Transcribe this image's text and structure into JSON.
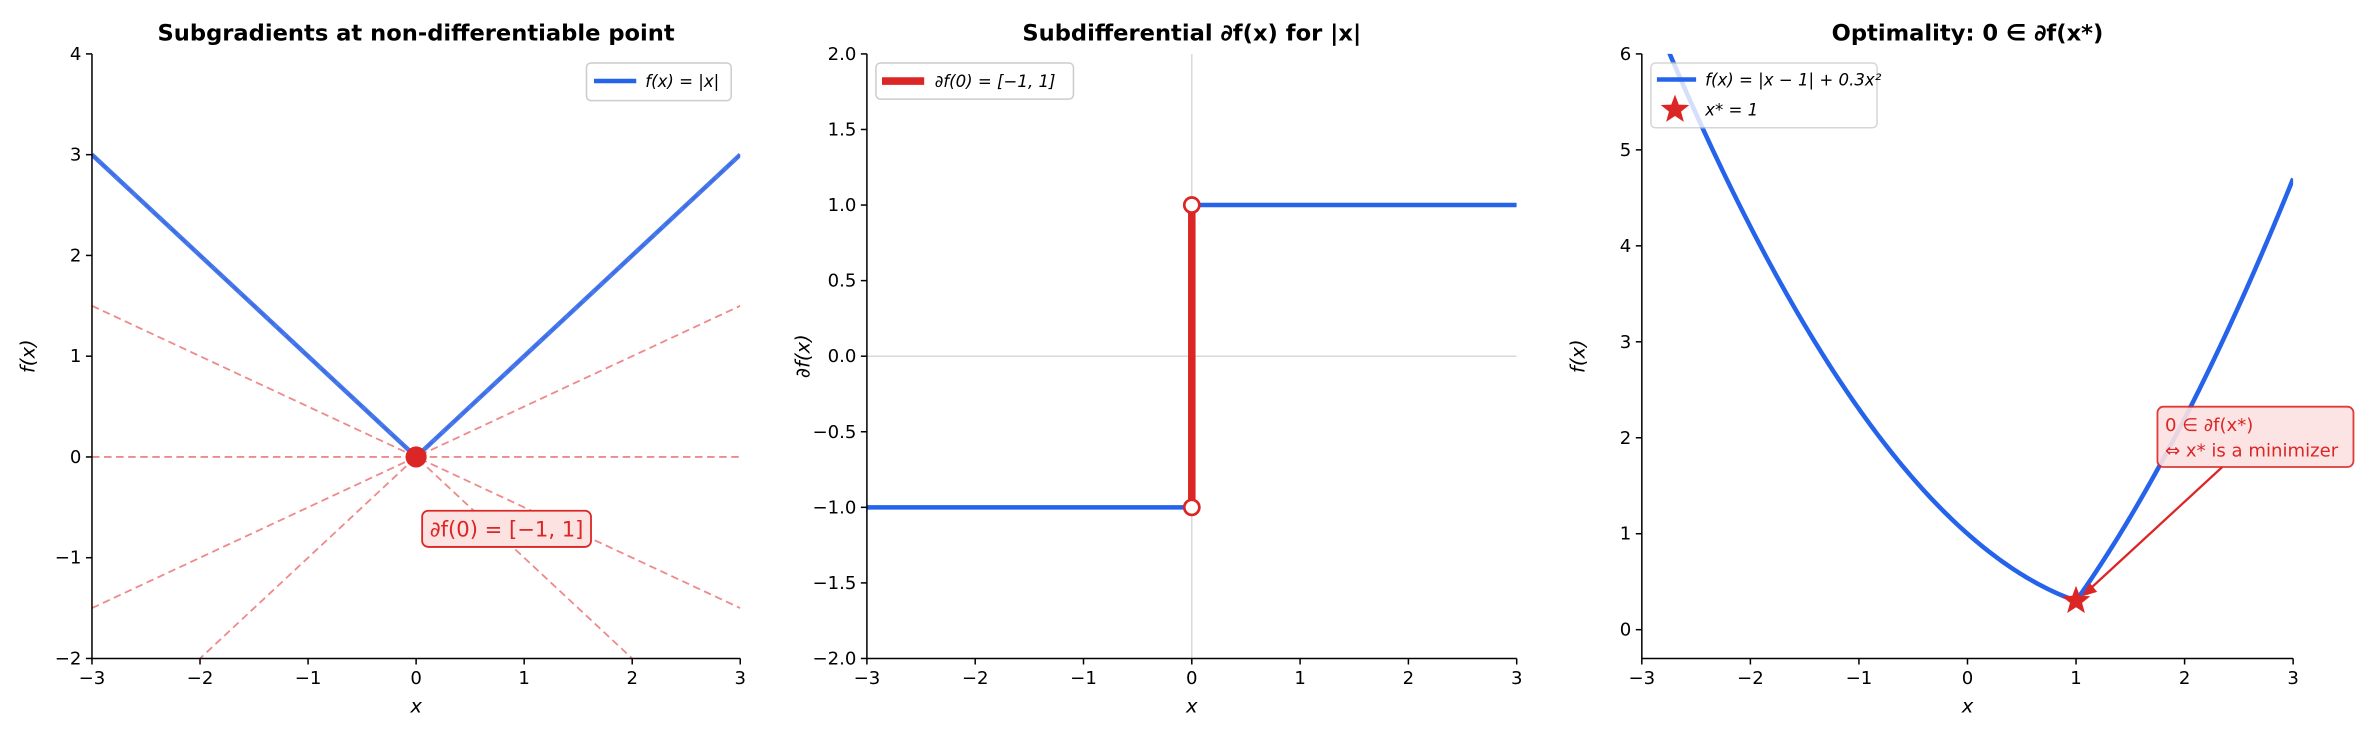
{
  "colors": {
    "blue": "#2563eb",
    "red": "#dc2626",
    "dashed_red": "#ef8a8a",
    "grid": "#d9d9d9",
    "annotation_fill": "#fde2e2"
  },
  "chart_data": [
    {
      "type": "line",
      "title": "Subgradients at non-differentiable point",
      "xlabel": "x",
      "ylabel": "f(x)",
      "xlim": [
        -3,
        3
      ],
      "ylim": [
        -2,
        4
      ],
      "xticks": [
        "−3",
        "−2",
        "−1",
        "0",
        "1",
        "2",
        "3"
      ],
      "yticks": [
        "−2",
        "−1",
        "0",
        "1",
        "2",
        "3",
        "4"
      ],
      "grid": false,
      "legend": {
        "placement": "top-right",
        "entries": [
          "f(x) = |x|"
        ]
      },
      "series": [
        {
          "name": "f(x) = |x|",
          "function": "|x|",
          "x": [
            -3,
            0,
            3
          ],
          "y": [
            3,
            0,
            3
          ]
        }
      ],
      "subgradient_lines_slopes": [
        -1,
        -0.5,
        0,
        0.5,
        1
      ],
      "point": {
        "x": 0,
        "y": 0
      },
      "annotation": "∂f(0) = [−1, 1]"
    },
    {
      "type": "line",
      "title": "Subdifferential ∂f(x) for |x|",
      "xlabel": "x",
      "ylabel": "∂f(x)",
      "xlim": [
        -3,
        3
      ],
      "ylim": [
        -2,
        2
      ],
      "xticks": [
        "−3",
        "−2",
        "−1",
        "0",
        "1",
        "2",
        "3"
      ],
      "yticks": [
        "−2.0",
        "−1.5",
        "−1.0",
        "−0.5",
        "0.0",
        "0.5",
        "1.0",
        "1.5",
        "2.0"
      ],
      "grid": "axis lines at x=0 and y=0",
      "legend": {
        "placement": "top-left",
        "entries": [
          "∂f(0) = [−1, 1]"
        ]
      },
      "series": [
        {
          "x": [
            -3,
            0
          ],
          "y": [
            -1,
            -1
          ]
        },
        {
          "x": [
            0,
            3
          ],
          "y": [
            1,
            1
          ]
        },
        {
          "name": "∂f(0) = [−1, 1]",
          "x": [
            0,
            0
          ],
          "y": [
            -1,
            1
          ]
        }
      ],
      "open_points": [
        {
          "x": 0,
          "y": 1
        },
        {
          "x": 0,
          "y": -1
        }
      ]
    },
    {
      "type": "line",
      "title": "Optimality: 0 ∈ ∂f(x*)",
      "xlabel": "x",
      "ylabel": "f(x)",
      "xlim": [
        -3,
        3
      ],
      "ylim": [
        -0.3,
        6
      ],
      "xticks": [
        "−3",
        "−2",
        "−1",
        "0",
        "1",
        "2",
        "3"
      ],
      "yticks": [
        "0",
        "1",
        "2",
        "3",
        "4",
        "5",
        "6"
      ],
      "grid": false,
      "legend": {
        "placement": "top-left",
        "entries": [
          "f(x) = |x − 1| + 0.3x²",
          "x* = 1"
        ]
      },
      "series": [
        {
          "name": "f(x) = |x − 1| + 0.3x²",
          "function": "|x-1|+0.3x^2"
        }
      ],
      "minimizer": {
        "name": "x* = 1",
        "x": 1,
        "y": 0.3
      },
      "annotation": [
        "0 ∈ ∂f(x*)",
        "⇔ x* is a minimizer"
      ]
    }
  ]
}
